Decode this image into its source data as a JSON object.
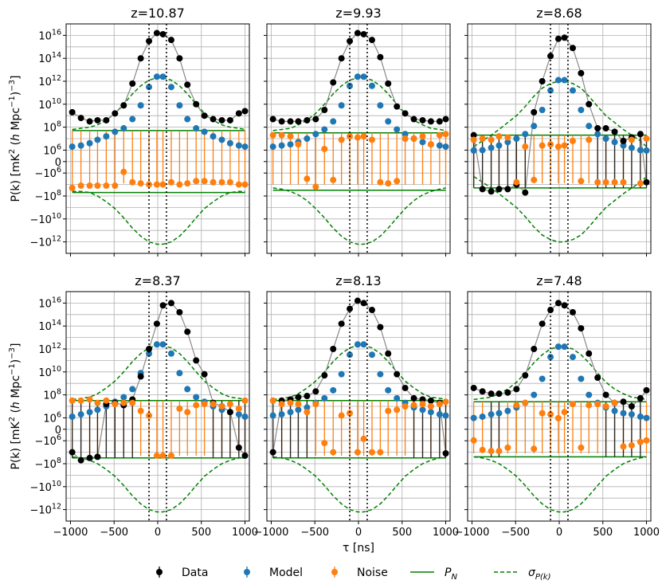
{
  "chart_data": {
    "type": "scatter",
    "layout": "2x3 grid of subplots",
    "xlabel": "τ [ns]",
    "ylabel": "P(k) [mK² (h Mpc⁻¹)⁻³]",
    "ylabel_parts": [
      "P(k) [mK",
      "2",
      " (",
      "h",
      " Mpc",
      "−1",
      ")",
      "−3",
      "]"
    ],
    "yscale": "symlog",
    "xlim": [
      -1050,
      1050
    ],
    "xticks": [
      -1000,
      -500,
      0,
      500,
      1000
    ],
    "xtick_labels": [
      "−1000",
      "−500",
      "0",
      "500",
      "1000"
    ],
    "yticks": [
      {
        "mant": "10",
        "exp": "16"
      },
      {
        "mant": "10",
        "exp": "14"
      },
      {
        "mant": "10",
        "exp": "12"
      },
      {
        "mant": "10",
        "exp": "10"
      },
      {
        "mant": "10",
        "exp": "8"
      },
      {
        "mant": "10",
        "exp": "6"
      },
      {
        "mant": "0",
        "exp": ""
      },
      {
        "mant": "−10",
        "exp": "6"
      },
      {
        "mant": "−10",
        "exp": "8"
      },
      {
        "mant": "−10",
        "exp": "10"
      },
      {
        "mant": "−10",
        "exp": "12"
      }
    ],
    "ytick_log_values": [
      16,
      14,
      12,
      10,
      8,
      6,
      0,
      -6,
      -8,
      -10,
      -12
    ],
    "horizon_lines_ns": [
      -100,
      100
    ],
    "legend": {
      "position": "bottom-center",
      "entries": [
        {
          "label": "Data",
          "color": "#000000",
          "kind": "point"
        },
        {
          "label": "Model",
          "color": "#1f77b4",
          "kind": "point"
        },
        {
          "label": "Noise",
          "color": "#ff7f0e",
          "kind": "point"
        },
        {
          "label": "P_N",
          "label_main": "P",
          "label_sub": "N",
          "color": "#008000",
          "kind": "solid-line"
        },
        {
          "label": "σ_P(k)",
          "label_main": "σ",
          "label_sub": "P(k)",
          "color": "#008000",
          "kind": "dashed-line"
        }
      ]
    },
    "colors": {
      "data": "#000000",
      "model": "#1f77b4",
      "noise": "#ff7f0e",
      "pn": "#008000",
      "sigma": "#008000",
      "axis": "#000000",
      "grid": "#b0b0b0"
    },
    "panels": [
      {
        "title": "z=10.87",
        "pn_log": 7.7,
        "data_log": [
          9.3,
          8.8,
          8.5,
          8.6,
          8.6,
          9.2,
          9.9,
          11.8,
          14.0,
          15.5,
          16.2,
          16.1,
          15.6,
          14.0,
          11.7,
          10.0,
          9.0,
          8.7,
          8.6,
          8.6,
          9.2,
          9.4
        ],
        "model_log": [
          6.3,
          6.4,
          6.6,
          6.9,
          7.2,
          7.6,
          7.9,
          8.7,
          9.9,
          11.5,
          12.4,
          12.4,
          11.5,
          9.9,
          8.7,
          7.9,
          7.6,
          7.2,
          6.9,
          6.6,
          6.4,
          6.3
        ],
        "noise_log": [
          -7.3,
          -7.1,
          -7.1,
          -7.1,
          -7.1,
          -7.1,
          -5.4,
          -6.8,
          -6.9,
          -7.0,
          -7.0,
          -7.0,
          -6.8,
          -7.0,
          -6.9,
          -6.7,
          -6.7,
          -6.8,
          -6.8,
          -6.8,
          -7.0,
          -7.0
        ],
        "noise_err_lo": [
          -7.3,
          -7.1,
          -7.1,
          -7.1,
          -7.1,
          -7.1,
          -6.9,
          -6.9,
          -6.9,
          -7.0,
          -7.0,
          -7.0,
          -6.9,
          -7.0,
          -6.9,
          -6.9,
          -6.9,
          -6.9,
          -6.9,
          -6.9,
          -7.0,
          -7.0
        ],
        "sigma_pos_log": [
          7.8,
          7.9,
          8.0,
          8.2,
          8.6,
          9.2,
          10.0,
          10.9,
          11.6,
          12.1,
          12.3,
          12.3,
          12.1,
          11.6,
          10.9,
          10.0,
          9.2,
          8.6,
          8.2,
          8.0,
          7.9,
          7.8
        ],
        "sigma_neg_log": [
          -7.6,
          -7.6,
          -7.7,
          -8.0,
          -8.5,
          -9.1,
          -9.9,
          -10.8,
          -11.5,
          -12.0,
          -12.2,
          -12.2,
          -12.0,
          -11.5,
          -10.8,
          -9.9,
          -9.1,
          -8.5,
          -8.0,
          -7.7,
          -7.6,
          -7.6
        ]
      },
      {
        "title": "z=9.93",
        "pn_log": 7.5,
        "data_log": [
          8.7,
          8.5,
          8.5,
          8.5,
          8.6,
          8.7,
          9.5,
          11.9,
          14.0,
          15.5,
          16.2,
          16.1,
          15.6,
          14.1,
          11.8,
          9.8,
          9.2,
          8.7,
          8.6,
          8.5,
          8.5,
          8.7
        ],
        "model_log": [
          6.3,
          6.4,
          6.5,
          6.7,
          7.0,
          7.4,
          7.8,
          8.5,
          9.9,
          11.6,
          12.4,
          12.4,
          11.6,
          9.9,
          8.5,
          7.8,
          7.4,
          7.0,
          6.7,
          6.5,
          6.4,
          6.3
        ],
        "noise_log": [
          7.3,
          7.3,
          7.2,
          6.5,
          -6.5,
          -7.2,
          6.1,
          -6.6,
          6.9,
          7.2,
          7.1,
          7.2,
          6.9,
          -6.8,
          -6.9,
          -6.7,
          7.0,
          7.0,
          7.2,
          6.5,
          7.3,
          7.4
        ],
        "noise_err_lo": [
          -7.0,
          -7.0,
          -7.0,
          -7.0,
          -7.0,
          -7.1,
          -7.0,
          -7.0,
          -7.0,
          -7.0,
          -7.0,
          -7.0,
          -7.0,
          -7.0,
          -7.0,
          -7.0,
          -7.0,
          -7.0,
          -7.0,
          -7.0,
          -7.0,
          -7.0
        ],
        "sigma_pos_log": [
          7.7,
          7.8,
          7.9,
          8.2,
          8.6,
          9.2,
          10.0,
          10.9,
          11.6,
          12.1,
          12.3,
          12.3,
          12.1,
          11.6,
          10.9,
          10.0,
          9.2,
          8.6,
          8.2,
          7.9,
          7.8,
          7.7
        ],
        "sigma_neg_log": [
          -7.3,
          -7.4,
          -7.6,
          -7.9,
          -8.4,
          -9.1,
          -9.9,
          -10.8,
          -11.5,
          -12.0,
          -12.2,
          -12.2,
          -12.0,
          -11.5,
          -10.8,
          -9.9,
          -9.1,
          -8.4,
          -7.9,
          -7.6,
          -7.4,
          -7.3
        ]
      },
      {
        "title": "z=8.68",
        "pn_log": 7.3,
        "data_log": [
          7.3,
          -7.4,
          -7.6,
          -7.4,
          -7.4,
          -7.0,
          -7.7,
          9.3,
          12.0,
          14.2,
          15.7,
          15.8,
          14.9,
          12.7,
          10.0,
          7.9,
          7.9,
          7.6,
          6.8,
          7.1,
          7.4,
          -6.8
        ],
        "model_log": [
          5.8,
          6.0,
          6.2,
          6.4,
          6.7,
          7.0,
          7.4,
          8.1,
          9.5,
          11.2,
          12.1,
          12.1,
          11.2,
          9.5,
          8.1,
          7.4,
          7.0,
          6.7,
          6.4,
          6.2,
          6.0,
          5.8
        ],
        "noise_log": [
          6.9,
          7.0,
          6.9,
          7.2,
          7.1,
          -6.8,
          6.3,
          -6.6,
          6.4,
          6.5,
          6.3,
          6.4,
          6.8,
          -6.7,
          6.9,
          -6.8,
          -6.8,
          -6.8,
          -6.8,
          6.9,
          -6.9,
          7.0
        ],
        "noise_err_lo": [
          -6.9,
          -6.9,
          -6.9,
          -6.9,
          -6.9,
          -6.9,
          -6.9,
          -6.9,
          -6.9,
          -6.9,
          -6.9,
          -6.9,
          -6.9,
          -6.9,
          -6.9,
          -6.9,
          -6.9,
          -6.9,
          -6.9,
          -6.9,
          -6.9,
          -6.9
        ],
        "sigma_pos_log": [
          6.3,
          6.8,
          7.3,
          7.8,
          8.4,
          9.0,
          9.8,
          10.7,
          11.4,
          11.8,
          12.0,
          12.0,
          11.8,
          11.4,
          10.7,
          9.8,
          9.0,
          8.4,
          7.8,
          7.3,
          6.8,
          6.3
        ],
        "sigma_neg_log": [
          -6.3,
          -6.8,
          -7.3,
          -7.8,
          -8.4,
          -9.0,
          -9.8,
          -10.7,
          -11.4,
          -11.8,
          -12.0,
          -12.0,
          -11.8,
          -11.4,
          -10.7,
          -9.8,
          -9.0,
          -8.4,
          -7.8,
          -7.3,
          -6.8,
          -6.3
        ]
      },
      {
        "title": "z=8.37",
        "pn_log": 7.5,
        "data_log": [
          -7.0,
          -7.7,
          -7.5,
          -7.4,
          7.2,
          7.3,
          7.1,
          7.6,
          9.6,
          12.0,
          14.2,
          15.8,
          16.0,
          15.2,
          13.5,
          11.0,
          9.8,
          7.3,
          7.0,
          6.5,
          -6.6,
          -7.3
        ],
        "model_log": [
          6.1,
          6.3,
          6.5,
          6.7,
          7.0,
          7.4,
          7.8,
          8.5,
          9.9,
          11.6,
          12.4,
          12.4,
          11.6,
          9.9,
          8.5,
          7.8,
          7.4,
          7.0,
          6.7,
          6.5,
          6.3,
          6.1
        ],
        "noise_log": [
          7.5,
          7.5,
          7.6,
          7.3,
          7.5,
          7.2,
          7.3,
          7.3,
          6.6,
          6.2,
          -7.3,
          -7.3,
          -7.3,
          6.8,
          6.5,
          7.1,
          7.2,
          7.2,
          7.0,
          7.2,
          6.8,
          7.5
        ],
        "noise_err_lo": [
          -7.3,
          -7.3,
          -7.3,
          -7.3,
          -7.3,
          -7.3,
          -7.3,
          -7.3,
          -7.3,
          -7.3,
          -7.3,
          -7.3,
          -7.3,
          -7.3,
          -7.3,
          -7.3,
          -7.3,
          -7.3,
          -7.3,
          -7.3,
          -7.3,
          -7.3
        ],
        "sigma_pos_log": [
          7.6,
          7.7,
          7.8,
          8.1,
          8.6,
          9.2,
          10.0,
          10.9,
          11.6,
          12.1,
          12.3,
          12.3,
          12.1,
          11.6,
          10.9,
          10.0,
          9.2,
          8.6,
          8.1,
          7.8,
          7.7,
          7.6
        ],
        "sigma_neg_log": [
          -7.4,
          -7.5,
          -7.7,
          -8.0,
          -8.5,
          -9.1,
          -9.9,
          -10.8,
          -11.5,
          -12.0,
          -12.2,
          -12.2,
          -12.0,
          -11.5,
          -10.8,
          -9.9,
          -9.1,
          -8.5,
          -8.0,
          -7.7,
          -7.5,
          -7.4
        ]
      },
      {
        "title": "z=8.13",
        "pn_log": 7.5,
        "data_log": [
          -7.0,
          7.5,
          7.6,
          7.8,
          7.9,
          8.3,
          9.7,
          12.0,
          14.2,
          15.5,
          16.2,
          16.0,
          15.4,
          13.9,
          11.6,
          9.8,
          8.6,
          7.7,
          7.6,
          7.5,
          7.3,
          -7.1
        ],
        "model_log": [
          6.2,
          6.3,
          6.5,
          6.7,
          6.9,
          7.3,
          7.7,
          8.4,
          9.8,
          11.5,
          12.4,
          12.4,
          11.5,
          9.8,
          8.4,
          7.7,
          7.3,
          6.9,
          6.7,
          6.5,
          6.3,
          6.2
        ],
        "noise_log": [
          7.5,
          7.2,
          7.3,
          7.2,
          6.5,
          7.2,
          -6.2,
          -7.0,
          6.2,
          6.4,
          -7.0,
          -5.0,
          -7.0,
          -7.0,
          6.6,
          6.7,
          7.0,
          7.1,
          7.2,
          7.0,
          7.2,
          7.4
        ],
        "noise_err_lo": [
          -7.3,
          -7.3,
          -7.3,
          -7.3,
          -7.3,
          -7.3,
          -7.3,
          -7.3,
          -7.3,
          -7.3,
          -7.3,
          -7.3,
          -7.3,
          -7.3,
          -7.3,
          -7.3,
          -7.3,
          -7.3,
          -7.3,
          -7.3,
          -7.3,
          -7.3
        ],
        "sigma_pos_log": [
          7.6,
          7.7,
          7.8,
          8.1,
          8.6,
          9.2,
          10.0,
          10.9,
          11.6,
          12.1,
          12.3,
          12.3,
          12.1,
          11.6,
          10.9,
          10.0,
          9.2,
          8.6,
          8.1,
          7.8,
          7.7,
          7.6
        ],
        "sigma_neg_log": [
          -7.4,
          -7.5,
          -7.7,
          -8.0,
          -8.5,
          -9.1,
          -9.9,
          -10.8,
          -11.5,
          -12.0,
          -12.2,
          -12.2,
          -12.0,
          -11.5,
          -10.8,
          -9.9,
          -9.1,
          -8.5,
          -8.0,
          -7.7,
          -7.5,
          -7.4
        ]
      },
      {
        "title": "z=7.48",
        "pn_log": 7.4,
        "data_log": [
          8.6,
          8.3,
          8.1,
          8.1,
          8.2,
          8.5,
          9.7,
          12.0,
          14.2,
          15.4,
          16.0,
          15.8,
          15.2,
          13.8,
          11.6,
          9.5,
          8.0,
          7.3,
          7.4,
          7.0,
          7.7,
          8.4
        ],
        "model_log": [
          5.9,
          6.1,
          6.3,
          6.4,
          6.6,
          6.9,
          7.3,
          8.0,
          9.4,
          11.3,
          12.2,
          12.2,
          11.3,
          9.4,
          8.0,
          7.3,
          6.9,
          6.6,
          6.4,
          6.3,
          6.1,
          5.9
        ],
        "noise_log": [
          -5.8,
          -6.8,
          -6.9,
          -6.9,
          -6.6,
          7.1,
          7.3,
          -6.7,
          6.4,
          6.3,
          5.8,
          6.5,
          7.2,
          -6.6,
          7.1,
          7.2,
          7.0,
          7.3,
          -6.5,
          -6.4,
          -6.1,
          -5.8
        ],
        "noise_err_lo": [
          -7.1,
          -7.1,
          -7.1,
          -7.1,
          -7.1,
          -7.1,
          -7.1,
          -7.1,
          -7.1,
          -7.1,
          -7.1,
          -7.1,
          -7.1,
          -7.1,
          -7.1,
          -7.1,
          -7.1,
          -7.1,
          -7.1,
          -7.1,
          -7.1,
          -7.1
        ],
        "sigma_pos_log": [
          7.6,
          7.7,
          7.8,
          8.1,
          8.5,
          9.1,
          9.9,
          10.8,
          11.5,
          12.0,
          12.2,
          12.2,
          12.0,
          11.5,
          10.8,
          9.9,
          9.1,
          8.5,
          8.1,
          7.8,
          7.7,
          7.6
        ],
        "sigma_neg_log": [
          -7.4,
          -7.5,
          -7.7,
          -8.0,
          -8.5,
          -9.1,
          -9.9,
          -10.8,
          -11.5,
          -12.0,
          -12.2,
          -12.2,
          -12.0,
          -11.5,
          -10.8,
          -9.9,
          -9.1,
          -8.5,
          -8.0,
          -7.7,
          -7.5,
          -7.4
        ]
      }
    ],
    "tau_ns": [
      -980,
      -880,
      -780,
      -690,
      -590,
      -490,
      -390,
      -290,
      -195,
      -100,
      -10,
      60,
      155,
      250,
      340,
      440,
      535,
      635,
      735,
      830,
      930,
      1000
    ]
  }
}
